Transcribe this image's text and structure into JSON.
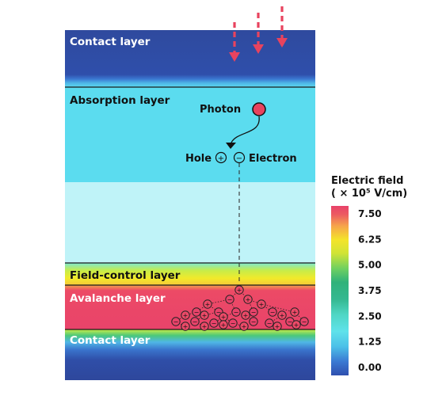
{
  "layers": {
    "contact_top": "Contact layer",
    "absorption": "Absorption layer",
    "field_control": "Field-control layer",
    "avalanche": "Avalanche layer",
    "contact_bottom": "Contact layer"
  },
  "annotations": {
    "photon": "Photon",
    "hole": "Hole",
    "electron": "Electron",
    "plus_sign": "+",
    "minus_sign": "−"
  },
  "colorbar": {
    "title_line1": "Electric field",
    "title_line2": "( × 10⁵ V/cm)",
    "ticks": [
      "7.50",
      "6.25",
      "5.00",
      "3.75",
      "2.50",
      "1.25",
      "0.00"
    ],
    "tick_values": [
      7.5,
      6.25,
      5.0,
      3.75,
      2.5,
      1.25,
      0.0
    ],
    "range": [
      0.0,
      7.5
    ],
    "colors": [
      "#3050b8",
      "#3a78d2",
      "#4fc0e8",
      "#5fe0e8",
      "#3fc8a6",
      "#2fb678",
      "#5fcf5a",
      "#c6e23a",
      "#f2e629",
      "#f6a24a",
      "#e8436a"
    ]
  },
  "colors": {
    "contact": "#2e4aa0",
    "absorption": "#5cdcef",
    "absorption_lower": "#bdf2f8",
    "field_control": "#f0ec2c",
    "avalanche": "#ec4468",
    "photon": "#e8435e",
    "arrows": "#e8435e"
  }
}
